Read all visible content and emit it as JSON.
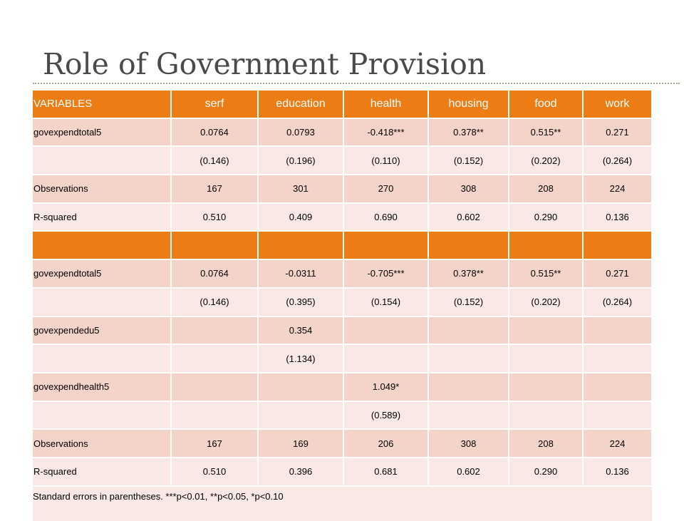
{
  "slide": {
    "title": "Role of Government Provision"
  },
  "table": {
    "headers": [
      "VARIABLES",
      "serf",
      "education",
      "health",
      "housing",
      "food",
      "work"
    ],
    "panel1": [
      [
        "govexpendtotal5",
        "0.0764",
        "0.0793",
        "-0.418***",
        "0.378**",
        "0.515**",
        "0.271"
      ],
      [
        "",
        "(0.146)",
        "(0.196)",
        "(0.110)",
        "(0.152)",
        "(0.202)",
        "(0.264)"
      ],
      [
        "Observations",
        "167",
        "301",
        "270",
        "308",
        "208",
        "224"
      ],
      [
        "R-squared",
        "0.510",
        "0.409",
        "0.690",
        "0.602",
        "0.290",
        "0.136"
      ]
    ],
    "panel2": [
      [
        "govexpendtotal5",
        "0.0764",
        "-0.0311",
        "-0.705***",
        "0.378**",
        "0.515**",
        "0.271"
      ],
      [
        "",
        "(0.146)",
        "(0.395)",
        "(0.154)",
        "(0.152)",
        "(0.202)",
        "(0.264)"
      ],
      [
        "govexpendedu5",
        "",
        "0.354",
        "",
        "",
        "",
        ""
      ],
      [
        "",
        "",
        "(1.134)",
        "",
        "",
        "",
        ""
      ],
      [
        "govexpendhealth5",
        "",
        "",
        "1.049*",
        "",
        "",
        ""
      ],
      [
        "",
        "",
        "",
        "(0.589)",
        "",
        "",
        ""
      ],
      [
        "Observations",
        "167",
        "169",
        "206",
        "308",
        "208",
        "224"
      ],
      [
        "R-squared",
        "0.510",
        "0.396",
        "0.681",
        "0.602",
        "0.290",
        "0.136"
      ]
    ],
    "footnote": "Standard errors in parentheses.  ***p<0.01, **p<0.05, *p<0.10"
  }
}
